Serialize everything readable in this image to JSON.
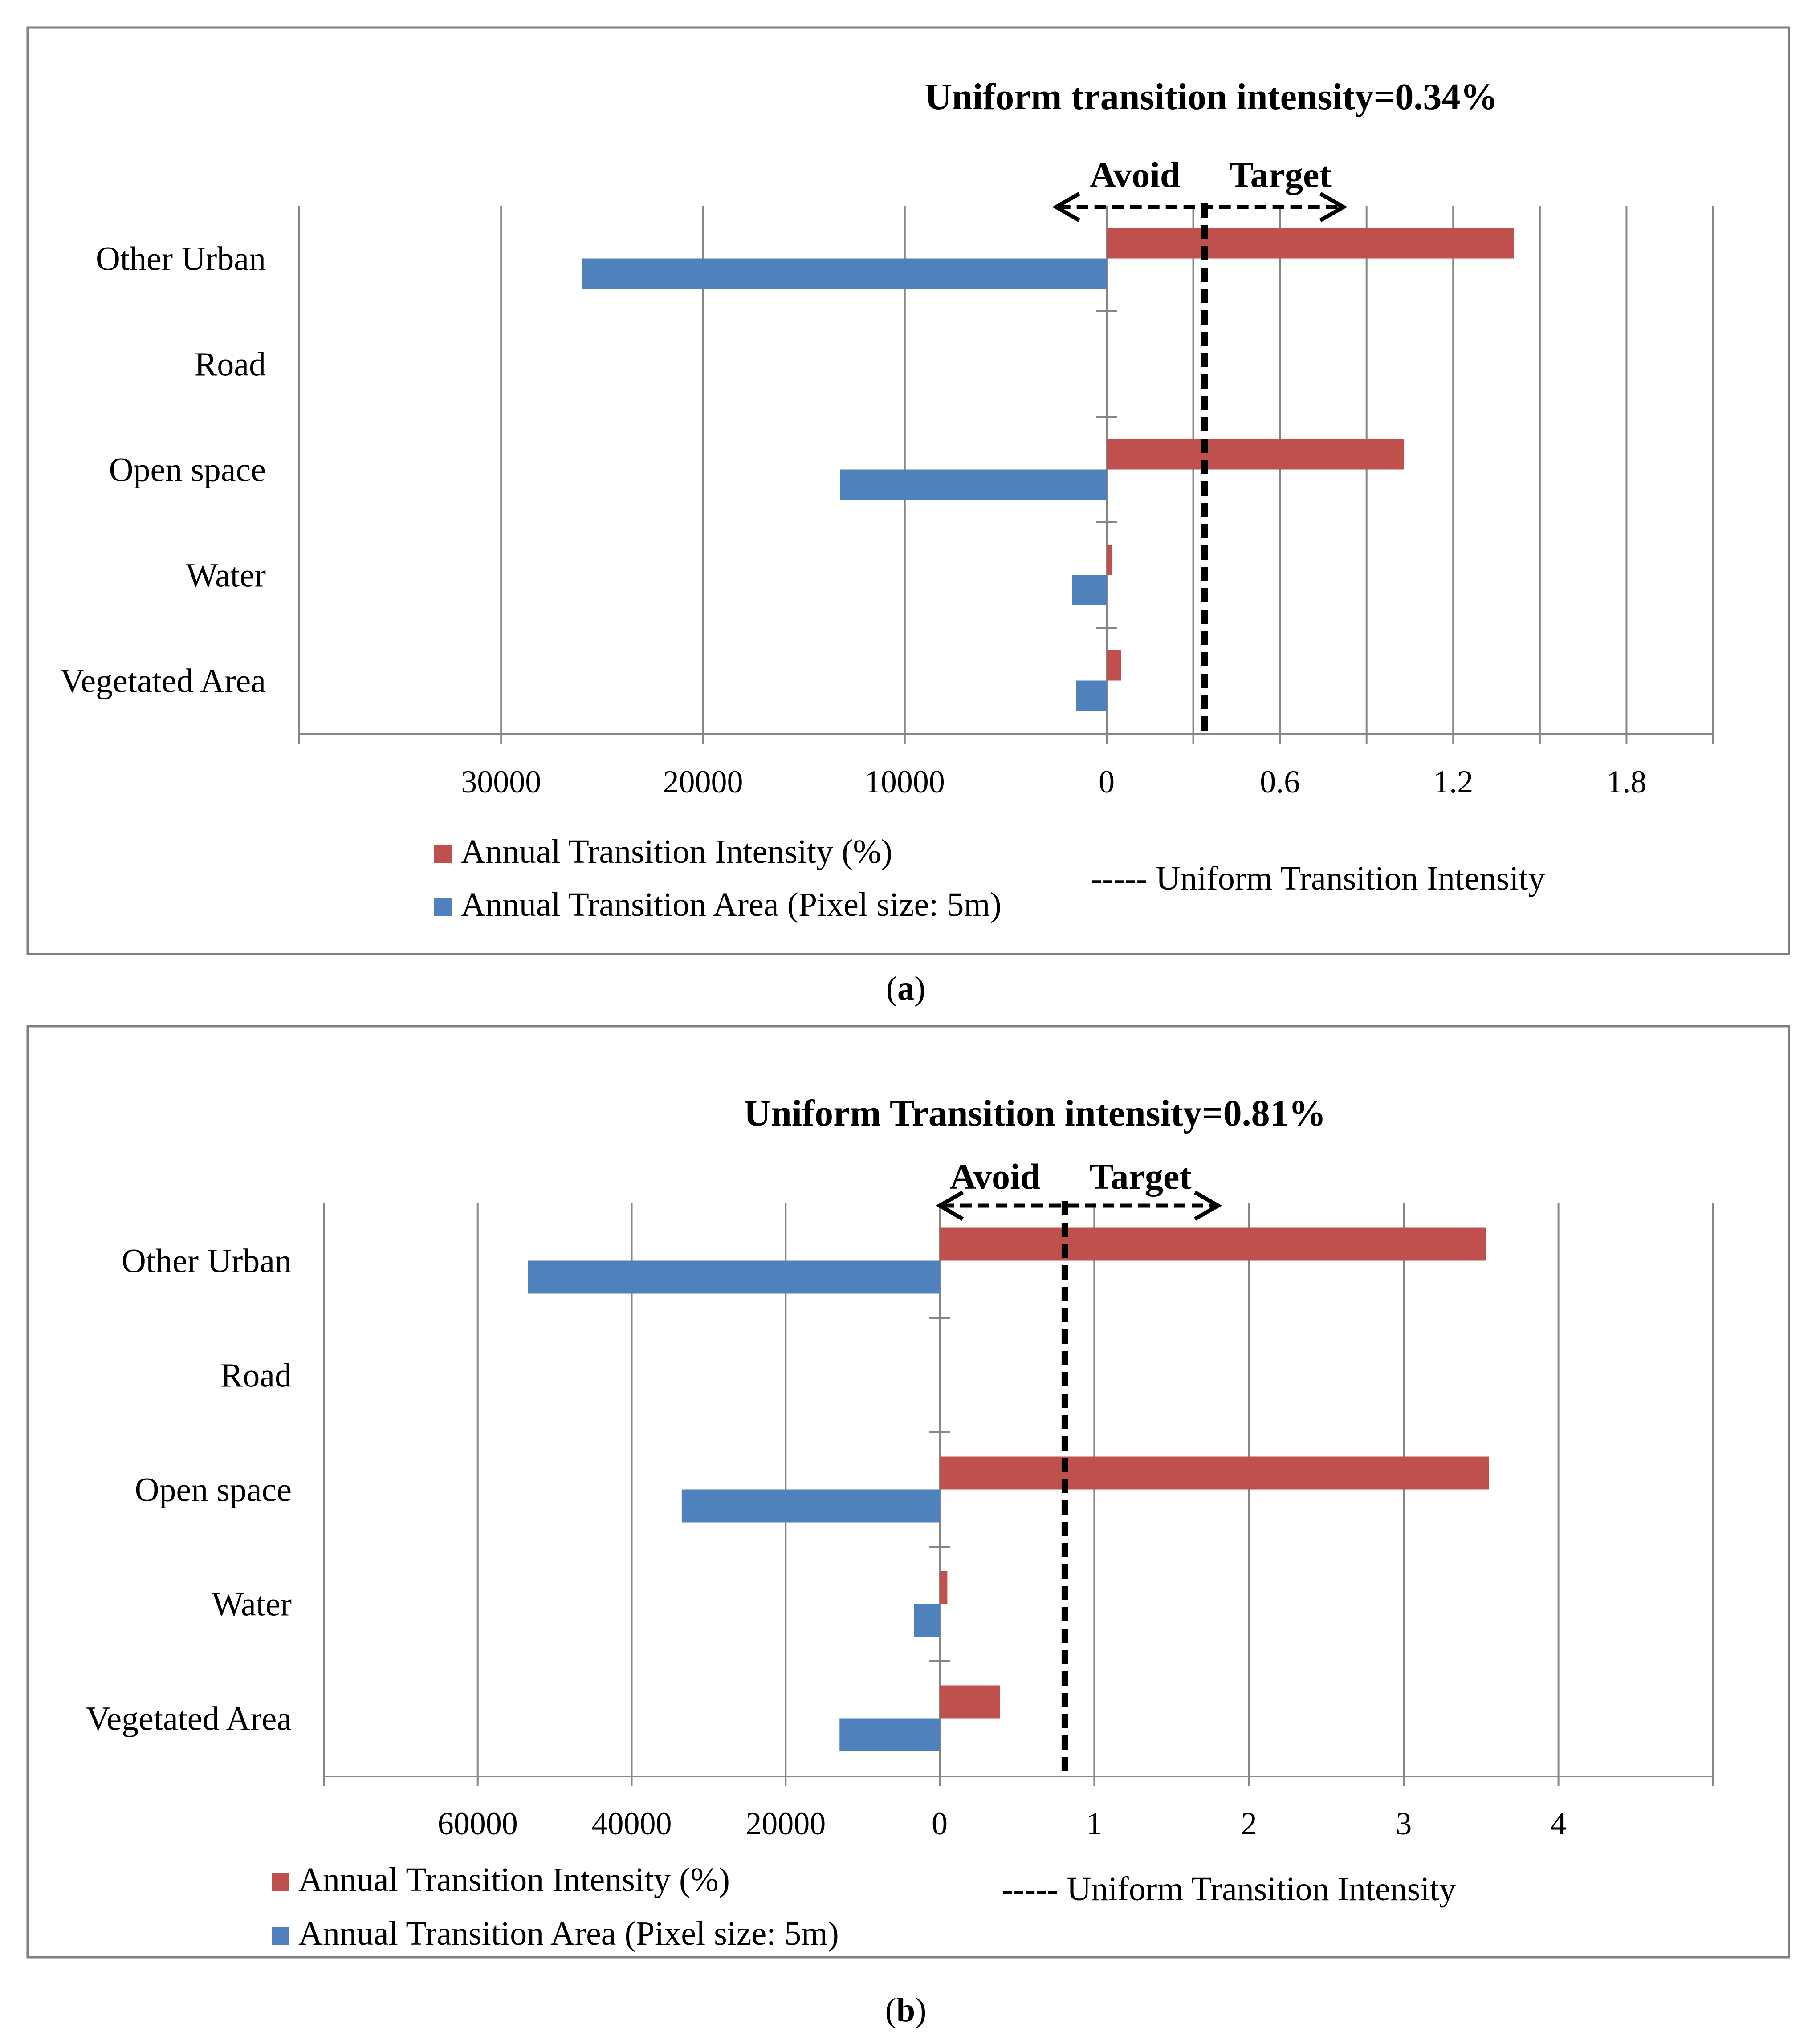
{
  "colors": {
    "intensity": "#c0504d",
    "area": "#4f81bd",
    "grid": "#868686",
    "frame": "#7f7f7f",
    "text": "#000000"
  },
  "chart_data": [
    {
      "id": "a",
      "type": "bar",
      "caption_prefix": "(",
      "caption_letter": "a",
      "caption_suffix": ")",
      "title": "Uniform transition intensity=0.34%",
      "categories": [
        "Other Urban",
        "Road",
        "Open space",
        "Water",
        "Vegetated Area"
      ],
      "series": [
        {
          "name": "Annual Transition Intensity (%)",
          "values": [
            1.41,
            0,
            1.03,
            0.02,
            0.05
          ]
        },
        {
          "name": "Annual Transition Area (Pixel size: 5m)",
          "values": [
            26000,
            0,
            13200,
            1700,
            1500
          ]
        }
      ],
      "uniform_intensity": 0.34,
      "uniform_label": "----- Uniform Transition Intensity",
      "avoid_label": "Avoid",
      "target_label": "Target",
      "left_axis": {
        "max": 40000,
        "step": 10000,
        "labels": [
          "30000",
          "20000",
          "10000"
        ]
      },
      "right_axis": {
        "max": 2.1,
        "step": 0.3,
        "labels": [
          "0.6",
          "1.2",
          "1.8"
        ]
      },
      "zero_label": "0",
      "arrow_range": [
        -2500,
        0.82
      ]
    },
    {
      "id": "b",
      "type": "bar",
      "caption_prefix": "(",
      "caption_letter": "b",
      "caption_suffix": ")",
      "title": "Uniform Transition intensity=0.81%",
      "categories": [
        "Other Urban",
        "Road",
        "Open space",
        "Water",
        "Vegetated Area"
      ],
      "series": [
        {
          "name": "Annual Transition Intensity (%)",
          "values": [
            3.53,
            0,
            3.55,
            0.05,
            0.39
          ]
        },
        {
          "name": "Annual Transition Area (Pixel size: 5m)",
          "values": [
            53500,
            0,
            33500,
            3300,
            13000
          ]
        }
      ],
      "uniform_intensity": 0.81,
      "uniform_label": "----- Uniform Transition Intensity",
      "avoid_label": "Avoid",
      "target_label": "Target",
      "left_axis": {
        "max": 80000,
        "step": 20000,
        "labels": [
          "60000",
          "40000",
          "20000"
        ]
      },
      "right_axis": {
        "max": 5,
        "step": 1,
        "labels": [
          "1",
          "2",
          "3",
          "4"
        ]
      },
      "zero_label": "0",
      "arrow_range": [
        -0.25,
        1.8
      ]
    }
  ]
}
